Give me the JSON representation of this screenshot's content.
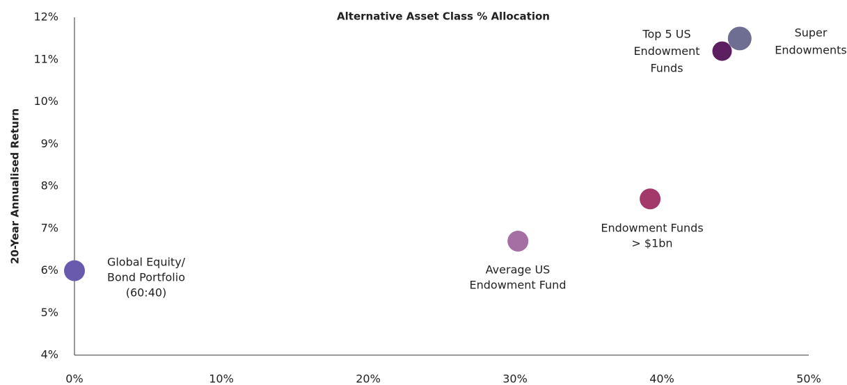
{
  "chart_data": {
    "type": "scatter",
    "title": "Alternative Asset Class % Allocation",
    "y_label": "20-Year Annualised Return",
    "xlim": [
      0,
      50
    ],
    "xticks": [
      {
        "value": 0,
        "label": "0%"
      },
      {
        "value": 10,
        "label": "10%"
      },
      {
        "value": 20,
        "label": "20%"
      },
      {
        "value": 30,
        "label": "30%"
      },
      {
        "value": 40,
        "label": "40%"
      },
      {
        "value": 50,
        "label": "50%"
      }
    ],
    "ylim": [
      4,
      12
    ],
    "yticks": [
      {
        "value": 4,
        "label": "4%"
      },
      {
        "value": 5,
        "label": "5%"
      },
      {
        "value": 6,
        "label": "6%"
      },
      {
        "value": 7,
        "label": "7%"
      },
      {
        "value": 8,
        "label": "8%"
      },
      {
        "value": 9,
        "label": "9%"
      },
      {
        "value": 10,
        "label": "10%"
      },
      {
        "value": 11,
        "label": "11%"
      },
      {
        "value": 12,
        "label": "12%"
      }
    ],
    "grid": false,
    "series": [
      {
        "name": [
          "Global Equity/",
          "Bond Portfolio",
          "(60:40)"
        ],
        "color": "#6a5aad",
        "x": [
          0
        ],
        "values": [
          6.0
        ]
      },
      {
        "name": [
          "Average US",
          "Endowment Fund"
        ],
        "color": "#a56fa3",
        "x": [
          30.2
        ],
        "values": [
          6.7
        ]
      },
      {
        "name": [
          "Endowment Funds",
          "> $1bn"
        ],
        "color": "#a3386a",
        "x": [
          39.2
        ],
        "values": [
          7.7
        ]
      },
      {
        "name": [
          "Top 5 US",
          "Endowment",
          "Funds"
        ],
        "color": "#5c1f5f",
        "x": [
          44.1
        ],
        "values": [
          11.2
        ]
      },
      {
        "name": [
          "Super",
          "Endowments"
        ],
        "color": "#6e6d92",
        "x": [
          45.3
        ],
        "values": [
          11.5
        ]
      }
    ]
  }
}
